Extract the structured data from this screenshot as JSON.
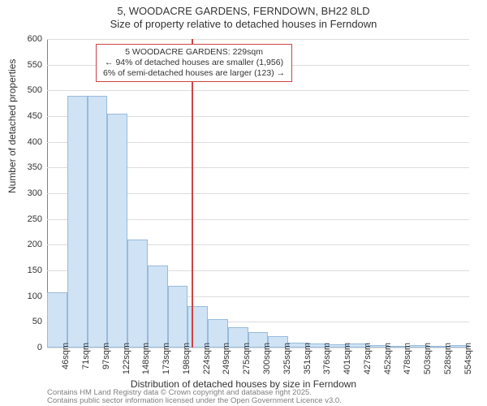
{
  "title": {
    "line1": "5, WOODACRE GARDENS, FERNDOWN, BH22 8LD",
    "line2": "Size of property relative to detached houses in Ferndown"
  },
  "chart": {
    "type": "histogram",
    "y_axis_title": "Number of detached properties",
    "x_axis_title": "Distribution of detached houses by size in Ferndown",
    "y_ticks": [
      0,
      50,
      100,
      150,
      200,
      250,
      300,
      350,
      400,
      450,
      500,
      550,
      600
    ],
    "y_max": 600,
    "x_ticks": [
      "46sqm",
      "71sqm",
      "97sqm",
      "122sqm",
      "148sqm",
      "173sqm",
      "198sqm",
      "224sqm",
      "249sqm",
      "275sqm",
      "300sqm",
      "325sqm",
      "351sqm",
      "376sqm",
      "401sqm",
      "427sqm",
      "452sqm",
      "478sqm",
      "503sqm",
      "528sqm",
      "554sqm"
    ],
    "bar_values": [
      108,
      490,
      490,
      455,
      210,
      160,
      120,
      80,
      55,
      40,
      30,
      22,
      10,
      8,
      6,
      8,
      5,
      3,
      5,
      3,
      4
    ],
    "bar_fill": "#cfe3f5",
    "bar_border": "#99badb",
    "grid_color": "#dddddd",
    "axis_color": "#808080",
    "background_color": "#ffffff",
    "marker": {
      "color": "#cc4444",
      "bin_index": 7,
      "fraction_in_bin": 0.2
    },
    "annotation": {
      "line1": "5 WOODACRE GARDENS: 229sqm",
      "line2": "← 94% of detached houses are smaller (1,956)",
      "line3": "6% of semi-detached houses are larger (123) →",
      "border_color": "#cc4444",
      "bg_color": "#ffffff",
      "fontsize": 10.5
    }
  },
  "footer": {
    "line1": "Contains HM Land Registry data © Crown copyright and database right 2025.",
    "line2": "Contains public sector information licensed under the Open Government Licence v3.0.",
    "color": "#808080"
  }
}
